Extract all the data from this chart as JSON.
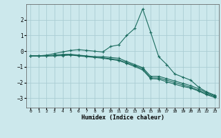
{
  "xlabel": "Humidex (Indice chaleur)",
  "background_color": "#cce8ec",
  "line_color": "#1a6b5e",
  "grid_color": "#aacdd4",
  "xlim": [
    -0.5,
    23.5
  ],
  "ylim": [
    -3.6,
    3.0
  ],
  "yticks": [
    -3,
    -2,
    -1,
    0,
    1,
    2
  ],
  "xticks": [
    0,
    1,
    2,
    3,
    4,
    5,
    6,
    7,
    8,
    9,
    10,
    11,
    12,
    13,
    14,
    15,
    16,
    17,
    18,
    19,
    20,
    21,
    22,
    23
  ],
  "lines": [
    {
      "x": [
        0,
        1,
        2,
        3,
        4,
        5,
        6,
        7,
        8,
        9,
        10,
        11,
        12,
        13,
        14,
        15,
        16,
        17,
        18,
        19,
        20,
        21,
        22,
        23
      ],
      "y": [
        -0.3,
        -0.3,
        -0.25,
        -0.15,
        -0.05,
        0.05,
        0.1,
        0.05,
        0.0,
        -0.05,
        0.3,
        0.4,
        1.0,
        1.45,
        2.7,
        1.2,
        -0.35,
        -0.85,
        -1.45,
        -1.65,
        -1.85,
        -2.3,
        -2.6,
        -2.8
      ]
    },
    {
      "x": [
        0,
        1,
        2,
        3,
        4,
        5,
        6,
        7,
        8,
        9,
        10,
        11,
        12,
        13,
        14,
        15,
        16,
        17,
        18,
        19,
        20,
        21,
        22,
        23
      ],
      "y": [
        -0.3,
        -0.3,
        -0.3,
        -0.25,
        -0.2,
        -0.2,
        -0.25,
        -0.3,
        -0.35,
        -0.35,
        -0.4,
        -0.45,
        -0.65,
        -0.85,
        -1.05,
        -1.6,
        -1.6,
        -1.75,
        -1.9,
        -2.05,
        -2.2,
        -2.4,
        -2.65,
        -2.85
      ]
    },
    {
      "x": [
        0,
        1,
        2,
        3,
        4,
        5,
        6,
        7,
        8,
        9,
        10,
        11,
        12,
        13,
        14,
        15,
        16,
        17,
        18,
        19,
        20,
        21,
        22,
        23
      ],
      "y": [
        -0.3,
        -0.3,
        -0.3,
        -0.28,
        -0.25,
        -0.22,
        -0.27,
        -0.32,
        -0.37,
        -0.42,
        -0.48,
        -0.55,
        -0.72,
        -0.92,
        -1.12,
        -1.7,
        -1.7,
        -1.85,
        -2.0,
        -2.15,
        -2.3,
        -2.5,
        -2.72,
        -2.9
      ]
    },
    {
      "x": [
        0,
        1,
        2,
        3,
        4,
        5,
        6,
        7,
        8,
        9,
        10,
        11,
        12,
        13,
        14,
        15,
        16,
        17,
        18,
        19,
        20,
        21,
        22,
        23
      ],
      "y": [
        -0.3,
        -0.3,
        -0.3,
        -0.3,
        -0.28,
        -0.25,
        -0.3,
        -0.35,
        -0.4,
        -0.45,
        -0.52,
        -0.6,
        -0.78,
        -0.98,
        -1.2,
        -1.75,
        -1.78,
        -1.95,
        -2.1,
        -2.25,
        -2.35,
        -2.55,
        -2.78,
        -2.95
      ]
    }
  ]
}
